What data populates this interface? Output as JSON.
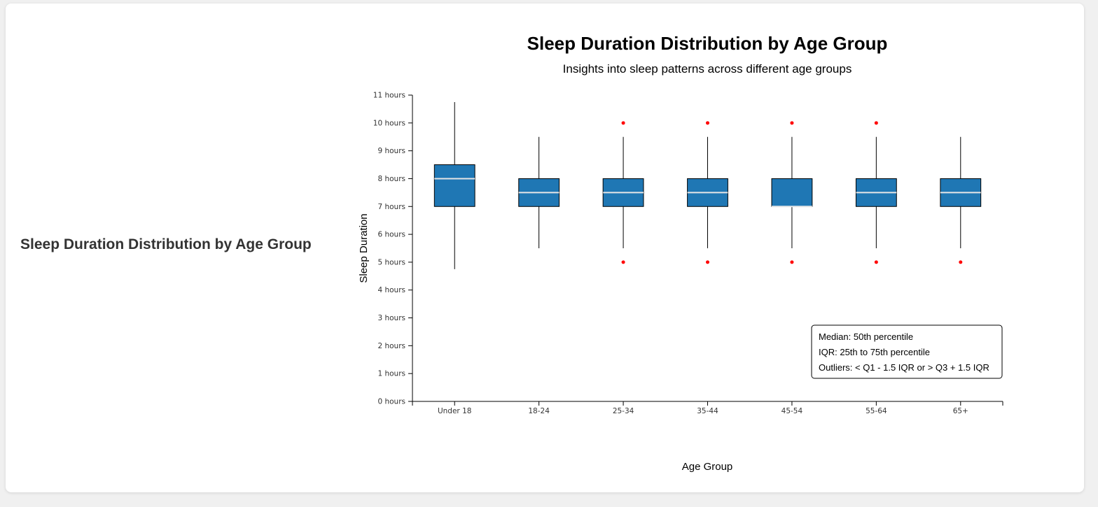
{
  "page": {
    "side_title": "Sleep Duration Distribution by Age Group"
  },
  "chart_data": {
    "type": "box",
    "title": "Sleep Duration Distribution by Age Group",
    "subtitle": "Insights into sleep patterns across different age groups",
    "xlabel": "Age Group",
    "ylabel": "Sleep Duration",
    "ylim": [
      0,
      11
    ],
    "y_ticks": [
      0,
      1,
      2,
      3,
      4,
      5,
      6,
      7,
      8,
      9,
      10,
      11
    ],
    "y_tick_suffix": " hours",
    "categories": [
      "Under 18",
      "18-24",
      "25-34",
      "35-44",
      "45-54",
      "55-64",
      "65+"
    ],
    "boxes": [
      {
        "category": "Under 18",
        "whisker_low": 4.75,
        "q1": 7,
        "median": 8,
        "q3": 8.5,
        "whisker_high": 10.75,
        "outliers": []
      },
      {
        "category": "18-24",
        "whisker_low": 5.5,
        "q1": 7,
        "median": 7.5,
        "q3": 8,
        "whisker_high": 9.5,
        "outliers": []
      },
      {
        "category": "25-34",
        "whisker_low": 5.5,
        "q1": 7,
        "median": 7.5,
        "q3": 8,
        "whisker_high": 9.5,
        "outliers": [
          5,
          10
        ]
      },
      {
        "category": "35-44",
        "whisker_low": 5.5,
        "q1": 7,
        "median": 7.5,
        "q3": 8,
        "whisker_high": 9.5,
        "outliers": [
          5,
          10
        ]
      },
      {
        "category": "45-54",
        "whisker_low": 5.5,
        "q1": 7,
        "median": 7,
        "q3": 8,
        "whisker_high": 9.5,
        "outliers": [
          5,
          10
        ]
      },
      {
        "category": "55-64",
        "whisker_low": 5.5,
        "q1": 7,
        "median": 7.5,
        "q3": 8,
        "whisker_high": 9.5,
        "outliers": [
          5,
          10
        ]
      },
      {
        "category": "65+",
        "whisker_low": 5.5,
        "q1": 7,
        "median": 7.5,
        "q3": 8,
        "whisker_high": 9.5,
        "outliers": [
          5
        ]
      }
    ],
    "legend": {
      "placement": "bottom-right",
      "lines": [
        "Median: 50th percentile",
        "IQR: 25th to 75th percentile",
        "Outliers: < Q1 - 1.5 IQR or > Q3 + 1.5 IQR"
      ]
    },
    "colors": {
      "box_fill": "#1f77b4",
      "median_line": "#e6e6e6",
      "outlier": "#ff0000",
      "whisker": "#000000"
    },
    "grid": false
  }
}
